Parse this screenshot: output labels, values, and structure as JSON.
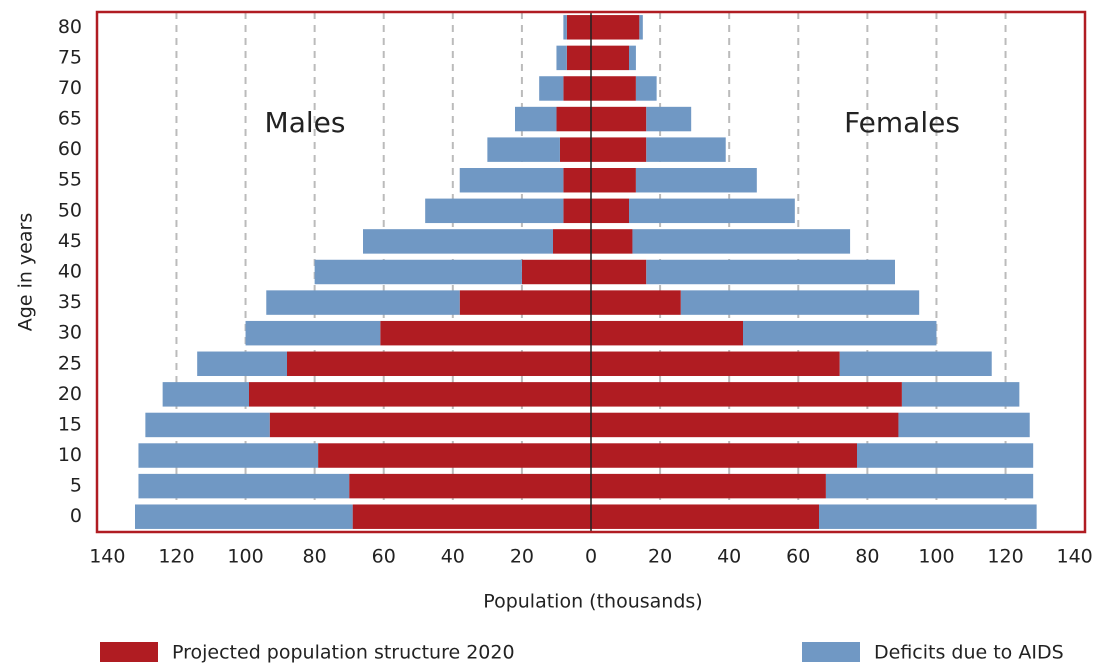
{
  "chart_data": {
    "type": "pyramid",
    "xlabel": "Population (thousands)",
    "ylabel": "Age in years",
    "annotations": [
      "Males",
      "Females"
    ],
    "categories": [
      "0",
      "5",
      "10",
      "15",
      "20",
      "25",
      "30",
      "35",
      "40",
      "45",
      "50",
      "55",
      "60",
      "65",
      "70",
      "75",
      "80"
    ],
    "series": [
      {
        "name": "Projected population structure 2020",
        "color": "#b01c22",
        "values": {
          "males": [
            -69,
            -70,
            -79,
            -93,
            -99,
            -88,
            -61,
            -38,
            -20,
            -11,
            -8,
            -8,
            -9,
            -10,
            -8,
            -7,
            -7
          ],
          "females": [
            66,
            68,
            77,
            89,
            90,
            72,
            44,
            26,
            16,
            12,
            11,
            13,
            16,
            16,
            13,
            11,
            14
          ]
        }
      },
      {
        "name": "Deficits due to AIDS",
        "color": "#7098c4",
        "values": {
          "males": [
            -63,
            -61,
            -52,
            -36,
            -25,
            -26,
            -39,
            -56,
            -60,
            -55,
            -40,
            -30,
            -21,
            -12,
            -7,
            -3,
            -1
          ],
          "females": [
            63,
            60,
            51,
            38,
            34,
            44,
            56,
            69,
            72,
            63,
            48,
            35,
            23,
            13,
            6,
            2,
            1
          ]
        }
      }
    ],
    "xlim": [
      -143,
      143
    ],
    "xticks": [
      {
        "value": -140,
        "label": "140"
      },
      {
        "value": -120,
        "label": "120"
      },
      {
        "value": -100,
        "label": "100"
      },
      {
        "value": -80,
        "label": "80"
      },
      {
        "value": -60,
        "label": "60"
      },
      {
        "value": -40,
        "label": "40"
      },
      {
        "value": -20,
        "label": "20"
      },
      0,
      20,
      40,
      60,
      80,
      100,
      120,
      140
    ],
    "grid": true,
    "frame_color": "#b01c22"
  }
}
